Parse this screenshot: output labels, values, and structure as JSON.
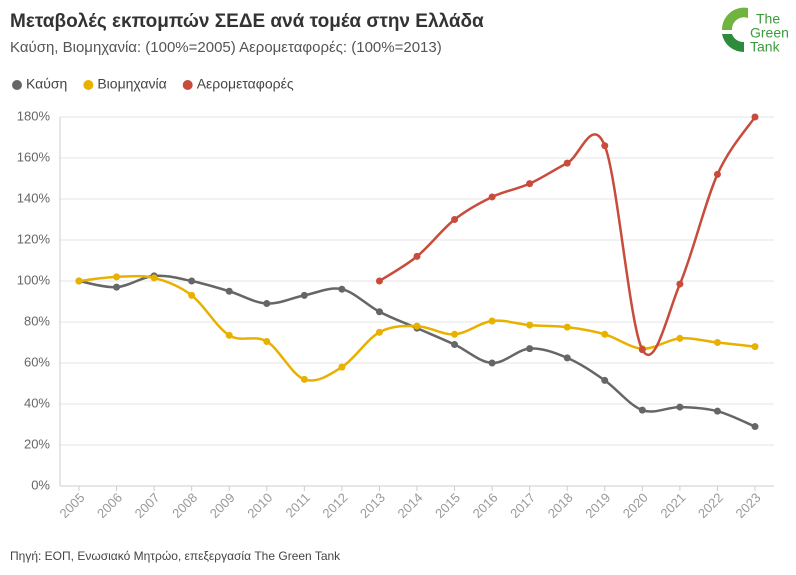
{
  "chart_data": {
    "type": "line",
    "title": "Μεταβολές εκπομπών ΣΕΔΕ ανά τομέα στην Ελλάδα",
    "subtitle": "Καύση, Βιομηχανία: (100%=2005) Αερομεταφορές: (100%=2013)",
    "source": "Πηγή: ΕΟΠ, Ενωσιακό Μητρώο, επεξεργασία The Green Tank",
    "logo": [
      "The",
      "Green",
      "Tank"
    ],
    "categories": [
      "2005",
      "2006",
      "2007",
      "2008",
      "2009",
      "2010",
      "2011",
      "2012",
      "2013",
      "2014",
      "2015",
      "2016",
      "2017",
      "2018",
      "2019",
      "2020",
      "2021",
      "2022",
      "2023"
    ],
    "series": [
      {
        "name": "Καύση",
        "color": "#666666",
        "values": [
          100,
          97,
          102.5,
          100,
          95,
          89,
          93,
          96,
          85,
          77,
          69,
          60,
          67,
          62.5,
          51.5,
          37,
          38.5,
          36.5,
          29
        ]
      },
      {
        "name": "Βιομηχανία",
        "color": "#e8b100",
        "values": [
          100,
          102,
          101.5,
          93,
          73.5,
          70.5,
          52,
          58,
          75,
          78,
          74,
          80.5,
          78.5,
          77.5,
          74,
          67,
          72,
          70,
          68
        ]
      },
      {
        "name": "Αερομεταφορές",
        "color": "#c84b3c",
        "values": [
          null,
          null,
          null,
          null,
          null,
          null,
          null,
          null,
          100,
          112,
          130,
          141,
          147.5,
          157.5,
          166,
          66.5,
          98.5,
          152,
          180
        ]
      }
    ],
    "ylim": [
      0,
      180
    ],
    "yticks": [
      {
        "value": 0,
        "label": "0%"
      },
      {
        "value": 20,
        "label": "20%"
      },
      {
        "value": 40,
        "label": "40%"
      },
      {
        "value": 60,
        "label": "60%"
      },
      {
        "value": 80,
        "label": "80%"
      },
      {
        "value": 100,
        "label": "100%"
      },
      {
        "value": 120,
        "label": "120%"
      },
      {
        "value": 140,
        "label": "140%"
      },
      {
        "value": 160,
        "label": "160%"
      },
      {
        "value": 180,
        "label": "180%"
      }
    ],
    "grid": true
  }
}
